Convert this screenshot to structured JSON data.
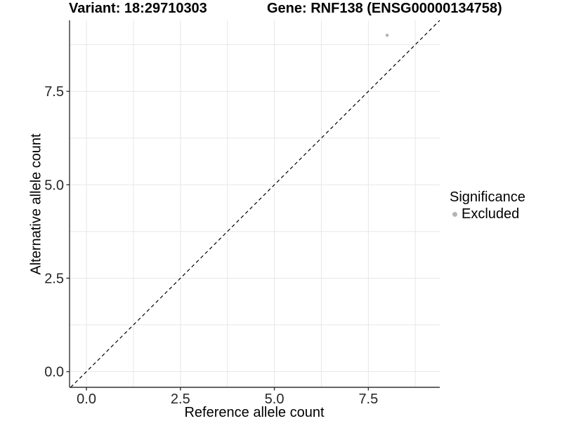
{
  "titles": {
    "variant": "Variant: 18:29710303",
    "gene": "Gene: RNF138 (ENSG00000134758)"
  },
  "chart_data": {
    "type": "scatter",
    "title_left": "Variant: 18:29710303",
    "title_right": "Gene: RNF138 (ENSG00000134758)",
    "xlabel": "Reference allele count",
    "ylabel": "Alternative allele count",
    "xlim": [
      -0.45,
      9.4
    ],
    "ylim": [
      -0.42,
      9.4
    ],
    "x_ticks": [
      0,
      2.5,
      5,
      7.5
    ],
    "y_ticks": [
      0,
      2.5,
      5,
      7.5
    ],
    "x_tick_labels": [
      "0.0",
      "2.5",
      "5.0",
      "7.5"
    ],
    "y_tick_labels": [
      "0.0",
      "2.5",
      "5.0",
      "7.5"
    ],
    "grid": true,
    "grid_interval": 1.25,
    "identity_line": {
      "slope": 1,
      "intercept": 0,
      "style": "dashed"
    },
    "series": [
      {
        "name": "Excluded",
        "color": "#b5b5b5",
        "points": [
          [
            8,
            9
          ]
        ]
      }
    ],
    "legend": {
      "title": "Significance",
      "position": "right",
      "items": [
        {
          "label": "Excluded",
          "color": "#b5b5b5"
        }
      ]
    }
  },
  "colors": {
    "point": "#b5b5b5",
    "grid": "#e7e7e7",
    "axis": "#333333",
    "tick_text": "#262626",
    "identity_line": "#000000"
  }
}
